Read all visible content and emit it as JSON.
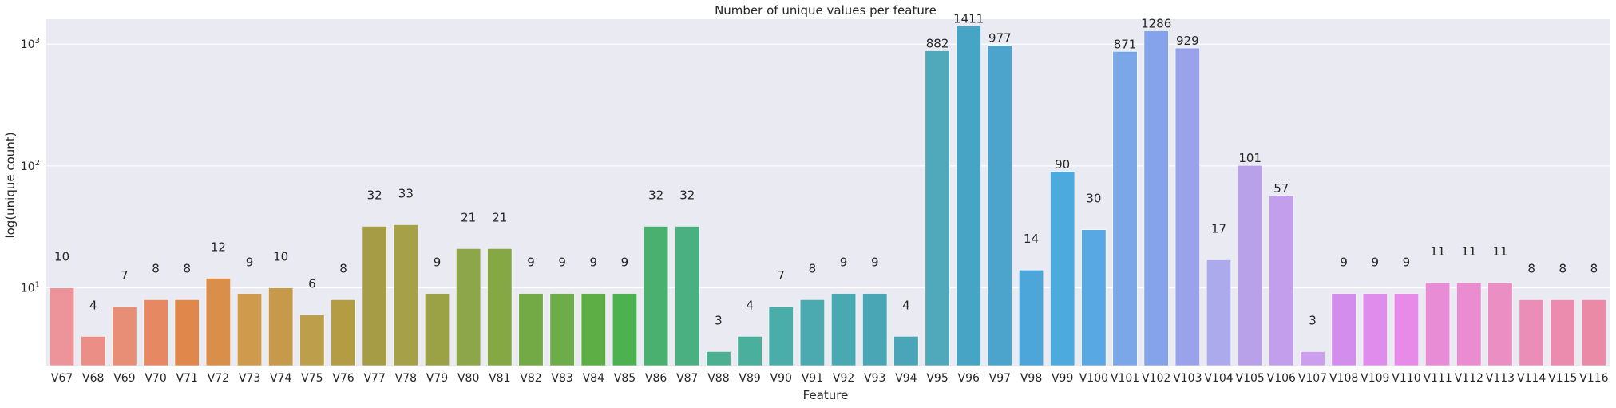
{
  "chart_data": {
    "type": "bar",
    "title": "Number of unique values per feature",
    "xlabel": "Feature",
    "ylabel": "log(unique count)",
    "yscale": "log",
    "ylim": [
      2.3,
      1600
    ],
    "yticks": [
      {
        "value": 10,
        "base": "10",
        "exp": "1"
      },
      {
        "value": 100,
        "base": "10",
        "exp": "2"
      },
      {
        "value": 1000,
        "base": "10",
        "exp": "3"
      }
    ],
    "grid": true,
    "categories": [
      "V67",
      "V68",
      "V69",
      "V70",
      "V71",
      "V72",
      "V73",
      "V74",
      "V75",
      "V76",
      "V77",
      "V78",
      "V79",
      "V80",
      "V81",
      "V82",
      "V83",
      "V84",
      "V85",
      "V86",
      "V87",
      "V88",
      "V89",
      "V90",
      "V91",
      "V92",
      "V93",
      "V94",
      "V95",
      "V96",
      "V97",
      "V98",
      "V99",
      "V100",
      "V101",
      "V102",
      "V103",
      "V104",
      "V105",
      "V106",
      "V107",
      "V108",
      "V109",
      "V110",
      "V111",
      "V112",
      "V113",
      "V114",
      "V115",
      "V116"
    ],
    "values": [
      10,
      4,
      7,
      8,
      8,
      12,
      9,
      10,
      6,
      8,
      32,
      33,
      9,
      21,
      21,
      9,
      9,
      9,
      9,
      32,
      32,
      3,
      4,
      7,
      8,
      9,
      9,
      4,
      882,
      1411,
      977,
      14,
      90,
      30,
      871,
      1286,
      929,
      17,
      101,
      57,
      3,
      9,
      9,
      9,
      11,
      11,
      11,
      8,
      8,
      8
    ],
    "colors": [
      "#ec9499",
      "#eb8e86",
      "#e98e76",
      "#e68862",
      "#e0884c",
      "#d98e4a",
      "#cf9a4b",
      "#c79a4b",
      "#bd9e4a",
      "#b49c44",
      "#a69c46",
      "#a6a048",
      "#9ba246",
      "#8da64a",
      "#85a845",
      "#74aa45",
      "#6cac49",
      "#5dae45",
      "#4cb14f",
      "#4ab070",
      "#4bb081",
      "#4ab08f",
      "#4aaf9c",
      "#4aadaa",
      "#4aaaaf",
      "#48a9b2",
      "#49a6b5",
      "#4aa5b8",
      "#4fa9bb",
      "#48a4c5",
      "#4ca4cd",
      "#4da6d9",
      "#4daade",
      "#58a8e4",
      "#7ba7e8",
      "#85a3ea",
      "#99a2ea",
      "#acaaed",
      "#b9a1ea",
      "#c29eec",
      "#cc9eee",
      "#d38eed",
      "#e08ced",
      "#e88be8",
      "#e88cd6",
      "#eb8cd0",
      "#eb8ec4",
      "#ea8eb8",
      "#eb8cae",
      "#ea8aa6"
    ]
  }
}
